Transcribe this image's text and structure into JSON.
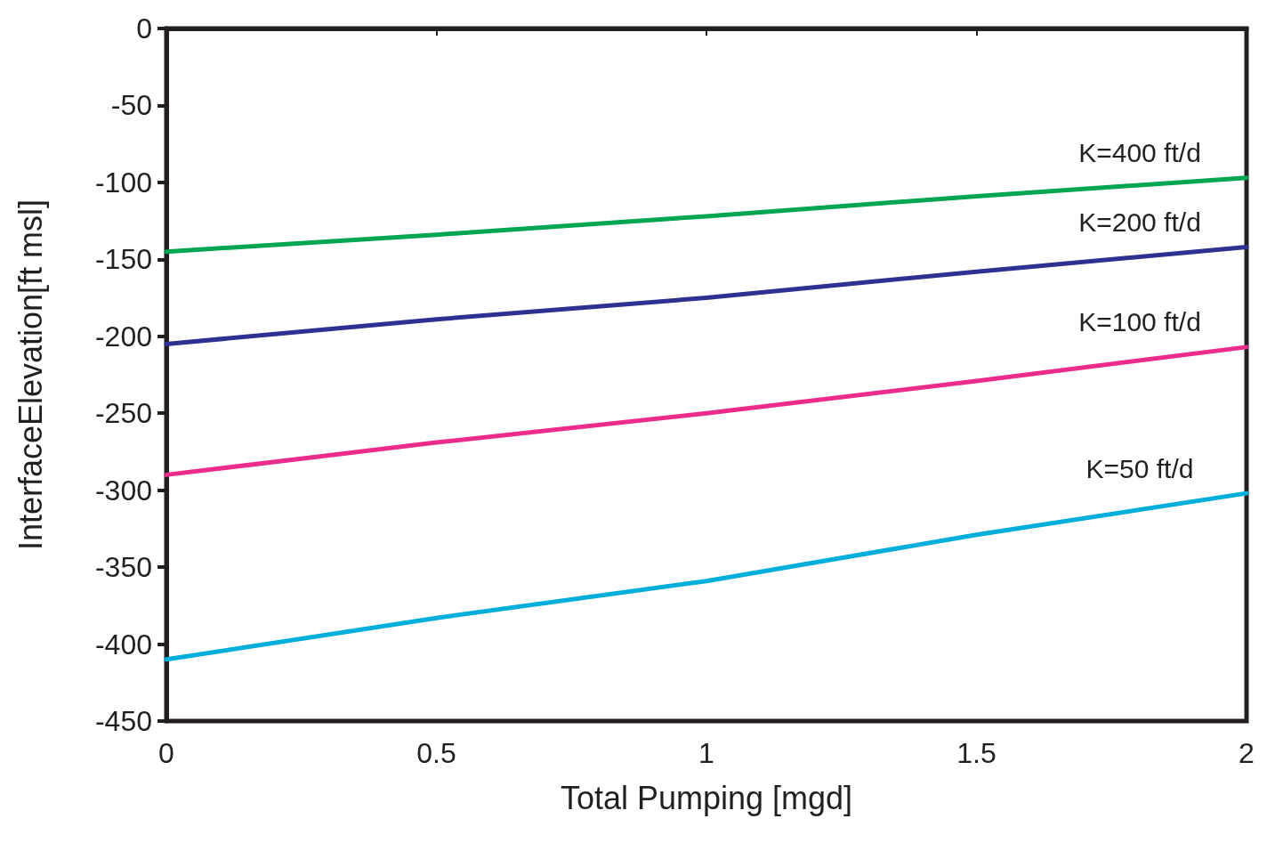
{
  "chart_data": {
    "type": "line",
    "xlabel": "Total Pumping [mgd]",
    "ylabel": "InterfaceElevation[ft msl]",
    "x": [
      0,
      0.5,
      1,
      1.5,
      2
    ],
    "xlim": [
      0,
      2
    ],
    "xticks": [
      0,
      0.5,
      1,
      1.5,
      2
    ],
    "ylim": [
      -450,
      0
    ],
    "yticks": [
      0,
      -50,
      -100,
      -150,
      -200,
      -250,
      -300,
      -350,
      -400,
      -450
    ],
    "legend": false,
    "line_style": "solid",
    "series": [
      {
        "name": "K=400 ft/d",
        "color": "#00a651",
        "values": [
          -145,
          -134,
          -122,
          -109,
          -97
        ]
      },
      {
        "name": "K=200 ft/d",
        "color": "#2e3192",
        "values": [
          -205,
          -189,
          -175,
          -158,
          -142
        ]
      },
      {
        "name": "K=100 ft/d",
        "color": "#ec2c8c",
        "values": [
          -290,
          -269,
          -250,
          -229,
          -207
        ]
      },
      {
        "name": "K=50 ft/d",
        "color": "#00aedb",
        "values": [
          -410,
          -383,
          -359,
          -329,
          -302
        ]
      }
    ]
  }
}
